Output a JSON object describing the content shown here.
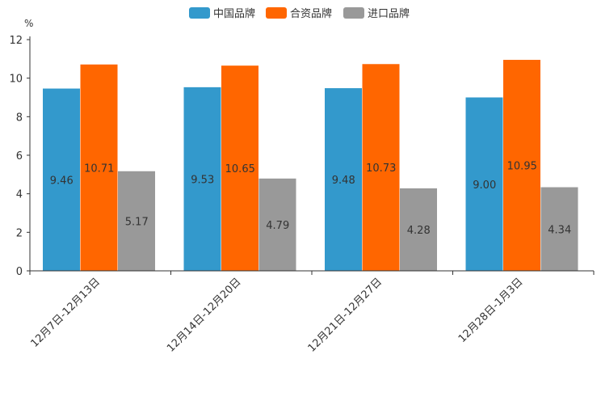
{
  "chart_data": {
    "type": "bar",
    "title": "",
    "ylabel": "%",
    "xlabel": "",
    "ylim": [
      0,
      12
    ],
    "yticks": [
      0,
      2,
      4,
      6,
      8,
      10,
      12
    ],
    "grid": false,
    "legend_position": "top-center",
    "categories": [
      "12月7日-12月13日",
      "12月14日-12月20日",
      "12月21日-12月27日",
      "12月28日-1月3日"
    ],
    "series": [
      {
        "name": "中国品牌",
        "color": "#3399cc",
        "values": [
          9.46,
          9.53,
          9.48,
          9.0
        ],
        "labels": [
          "9.46",
          "9.53",
          "9.48",
          "9.00"
        ]
      },
      {
        "name": "合资品牌",
        "color": "#ff6600",
        "values": [
          10.71,
          10.65,
          10.73,
          10.95
        ],
        "labels": [
          "10.71",
          "10.65",
          "10.73",
          "10.95"
        ]
      },
      {
        "name": "进口品牌",
        "color": "#999999",
        "values": [
          5.17,
          4.79,
          4.28,
          4.34
        ],
        "labels": [
          "5.17",
          "4.79",
          "4.28",
          "4.34"
        ]
      }
    ]
  }
}
